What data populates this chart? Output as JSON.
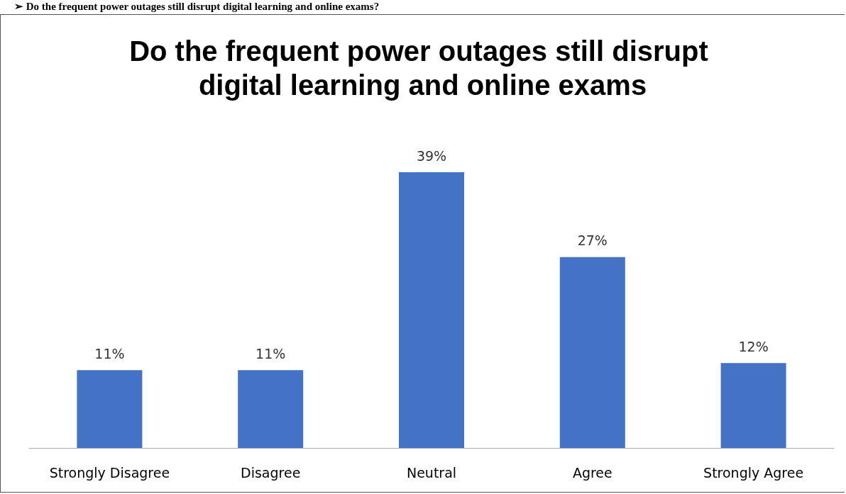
{
  "chart_data": {
    "type": "bar",
    "title": "Do the frequent power outages still disrupt digital learning and online exams",
    "annotations": [
      "➢ Do the frequent power outages still disrupt digital learning and online exams?"
    ],
    "categories": [
      "Strongly Disagree",
      "Disagree",
      "Neutral",
      "Agree",
      "Strongly Agree"
    ],
    "values": [
      11,
      11,
      39,
      27,
      12
    ],
    "value_labels": [
      "11%",
      "11%",
      "39%",
      "27%",
      "12%"
    ],
    "color": "#4472c4"
  }
}
